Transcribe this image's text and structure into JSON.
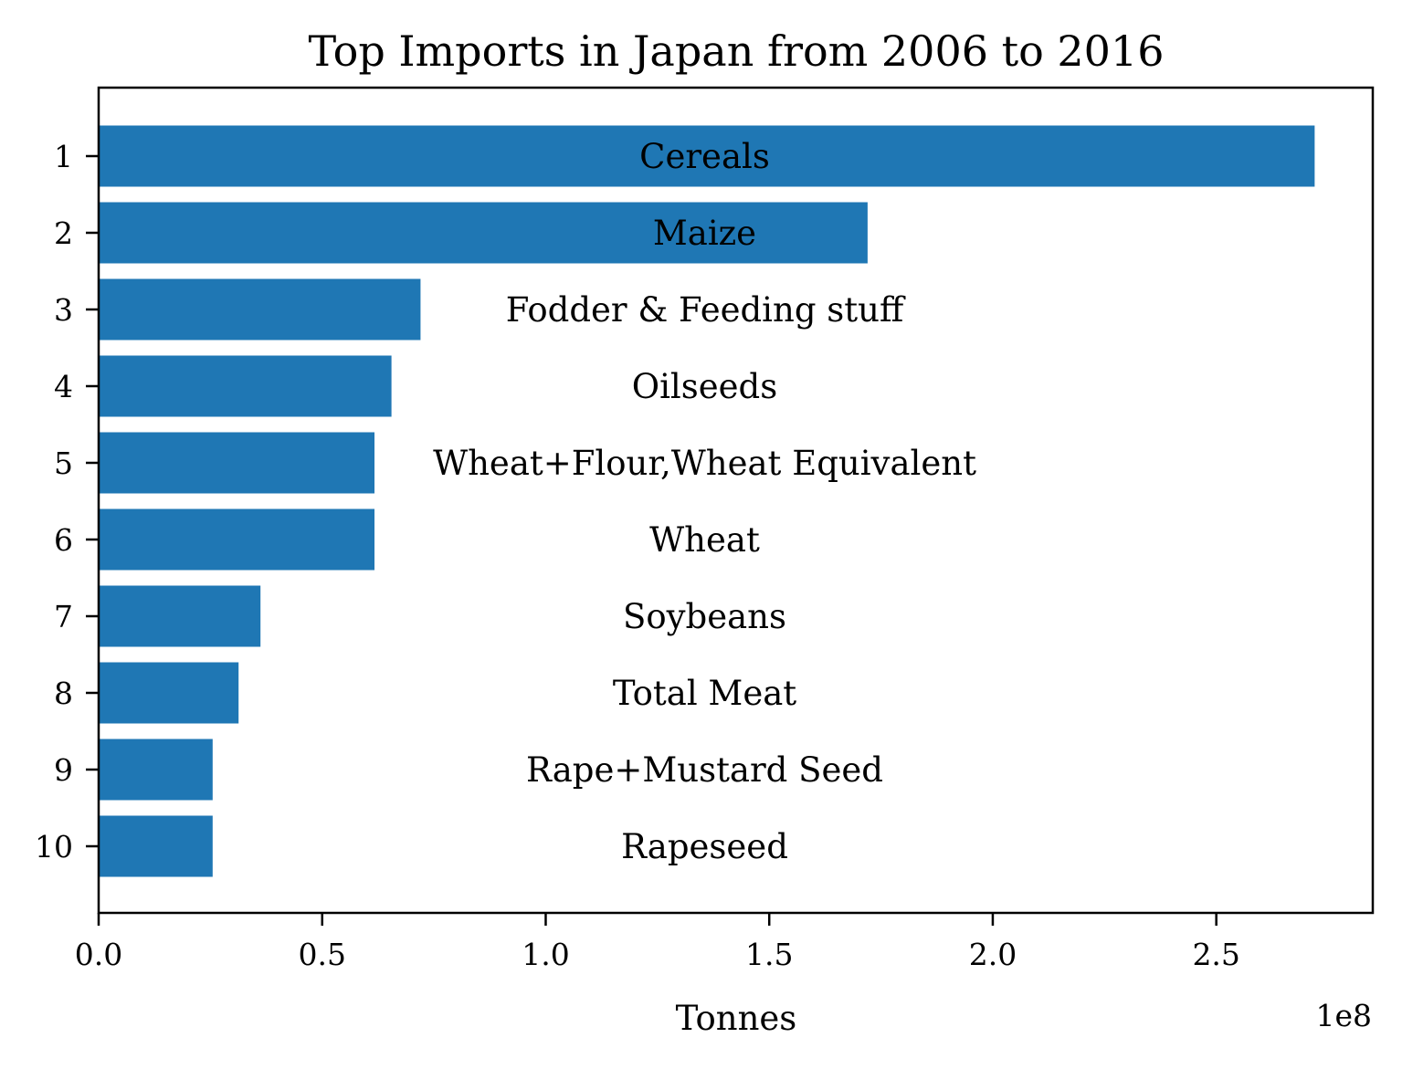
{
  "chart_data": {
    "type": "bar",
    "orientation": "horizontal",
    "title": "Top Imports in Japan from 2006 to 2016",
    "xlabel": "Tonnes",
    "ylabel": "",
    "x_offset_label": "1e8",
    "xlim": [
      0,
      2.85
    ],
    "x_ticks": [
      "0.0",
      "0.5",
      "1.0",
      "1.5",
      "2.0",
      "2.5"
    ],
    "x_tick_values": [
      0,
      0.5,
      1.0,
      1.5,
      2.0,
      2.5
    ],
    "categories": [
      "1",
      "2",
      "3",
      "4",
      "5",
      "6",
      "7",
      "8",
      "9",
      "10"
    ],
    "bar_labels": [
      "Cereals",
      "Maize",
      "Fodder & Feeding stuff",
      "Oilseeds",
      "Wheat+Flour,Wheat Equivalent",
      "Wheat",
      "Soybeans",
      "Total Meat",
      "Rape+Mustard Seed",
      "Rapeseed"
    ],
    "values": [
      2.72,
      1.72,
      0.72,
      0.655,
      0.617,
      0.617,
      0.362,
      0.313,
      0.255,
      0.255
    ],
    "value_multiplier": 100000000,
    "bar_color": "#1f77b4",
    "grid": false,
    "legend": "none"
  }
}
